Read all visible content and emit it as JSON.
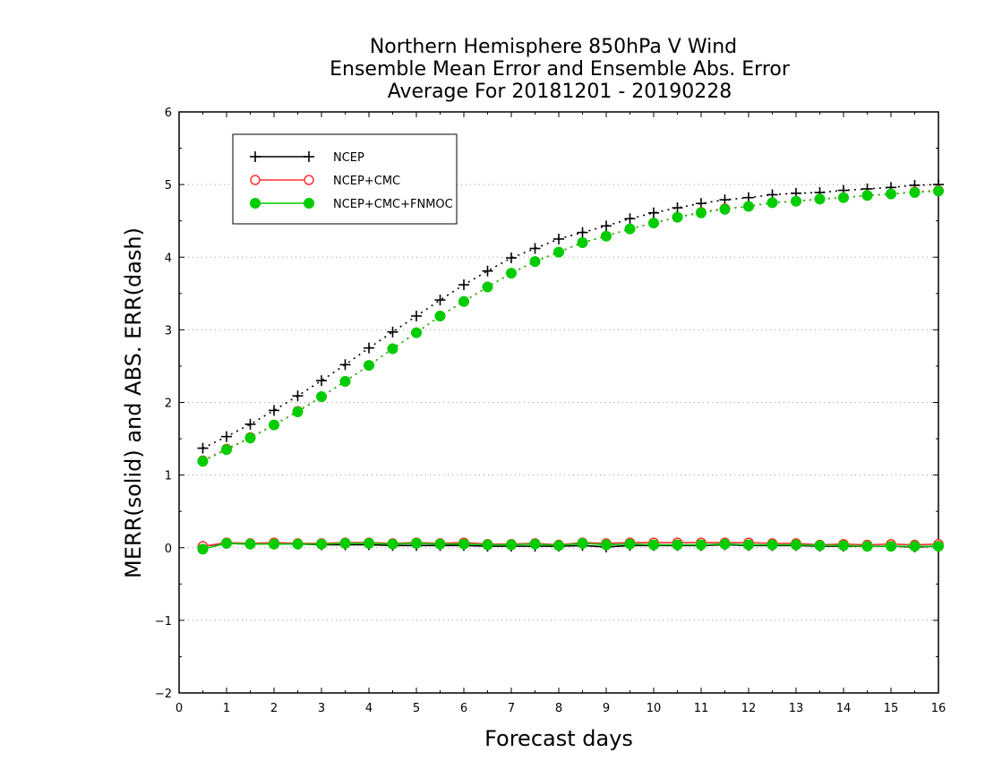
{
  "chart_data": {
    "type": "line",
    "title": [
      "Northern Hemisphere 850hPa V Wind",
      "Ensemble Mean Error and Ensemble Abs. Error",
      "Average For 20181201 - 20190228"
    ],
    "xlabel": "Forecast days",
    "ylabel": "MERR(solid) and ABS. ERR(dash)",
    "xlim": [
      0,
      16
    ],
    "ylim": [
      -2,
      6
    ],
    "xticks": [
      "0",
      "1",
      "2",
      "3",
      "4",
      "5",
      "6",
      "7",
      "8",
      "9",
      "10",
      "11",
      "12",
      "13",
      "14",
      "15",
      "16"
    ],
    "yticks": [
      "−2",
      "−1",
      "0",
      "1",
      "2",
      "3",
      "4",
      "5",
      "6"
    ],
    "grid": "horizontal dotted",
    "legend_position": "top-left",
    "x": [
      0.5,
      1,
      1.5,
      2,
      2.5,
      3,
      3.5,
      4,
      4.5,
      5,
      5.5,
      6,
      6.5,
      7,
      7.5,
      8,
      8.5,
      9,
      9.5,
      10,
      10.5,
      11,
      11.5,
      12,
      12.5,
      13,
      13.5,
      14,
      14.5,
      15,
      15.5,
      16
    ],
    "series": [
      {
        "name": "NCEP",
        "color": "#000000",
        "marker": "plus",
        "merr": [
          0.02,
          0.06,
          0.05,
          0.05,
          0.05,
          0.04,
          0.04,
          0.04,
          0.03,
          0.03,
          0.03,
          0.03,
          0.02,
          0.02,
          0.02,
          0.02,
          0.03,
          0.01,
          0.03,
          0.03,
          0.03,
          0.03,
          0.04,
          0.03,
          0.03,
          0.03,
          0.02,
          0.02,
          0.02,
          0.02,
          0.01,
          0.02
        ],
        "abs_err": [
          1.37,
          1.53,
          1.7,
          1.89,
          2.09,
          2.3,
          2.52,
          2.75,
          2.97,
          3.19,
          3.41,
          3.62,
          3.81,
          3.99,
          4.12,
          4.25,
          4.34,
          4.43,
          4.53,
          4.61,
          4.68,
          4.74,
          4.79,
          4.82,
          4.86,
          4.88,
          4.89,
          4.92,
          4.94,
          4.96,
          4.99,
          5.0
        ]
      },
      {
        "name": "NCEP+CMC",
        "color": "#ff3333",
        "marker": "open-circle",
        "merr": [
          0.02,
          0.07,
          0.06,
          0.07,
          0.06,
          0.06,
          0.07,
          0.07,
          0.06,
          0.07,
          0.06,
          0.07,
          0.05,
          0.05,
          0.06,
          0.04,
          0.07,
          0.06,
          0.07,
          0.07,
          0.07,
          0.07,
          0.07,
          0.07,
          0.06,
          0.06,
          0.04,
          0.05,
          0.04,
          0.05,
          0.04,
          0.05
        ],
        "abs_err": [
          1.2,
          1.36,
          1.52,
          1.69,
          1.88,
          2.08,
          2.29,
          2.51,
          2.74,
          2.96,
          3.19,
          3.39,
          3.59,
          3.78,
          3.94,
          4.07,
          4.2,
          4.29,
          4.39,
          4.47,
          4.55,
          4.62,
          4.67,
          4.7,
          4.75,
          4.77,
          4.8,
          4.82,
          4.85,
          4.87,
          4.9,
          4.92
        ]
      },
      {
        "name": "NCEP+CMC+FNMOC",
        "color": "#00cc00",
        "marker": "filled-circle",
        "merr": [
          -0.02,
          0.06,
          0.05,
          0.05,
          0.05,
          0.05,
          0.06,
          0.06,
          0.05,
          0.06,
          0.05,
          0.05,
          0.04,
          0.04,
          0.05,
          0.03,
          0.06,
          0.04,
          0.05,
          0.04,
          0.04,
          0.04,
          0.05,
          0.04,
          0.04,
          0.04,
          0.03,
          0.03,
          0.02,
          0.02,
          0.02,
          0.02
        ],
        "abs_err": [
          1.19,
          1.35,
          1.51,
          1.69,
          1.87,
          2.08,
          2.29,
          2.51,
          2.74,
          2.96,
          3.19,
          3.39,
          3.59,
          3.78,
          3.94,
          4.07,
          4.2,
          4.29,
          4.39,
          4.47,
          4.55,
          4.61,
          4.66,
          4.7,
          4.75,
          4.77,
          4.8,
          4.82,
          4.85,
          4.87,
          4.89,
          4.91
        ]
      }
    ]
  }
}
